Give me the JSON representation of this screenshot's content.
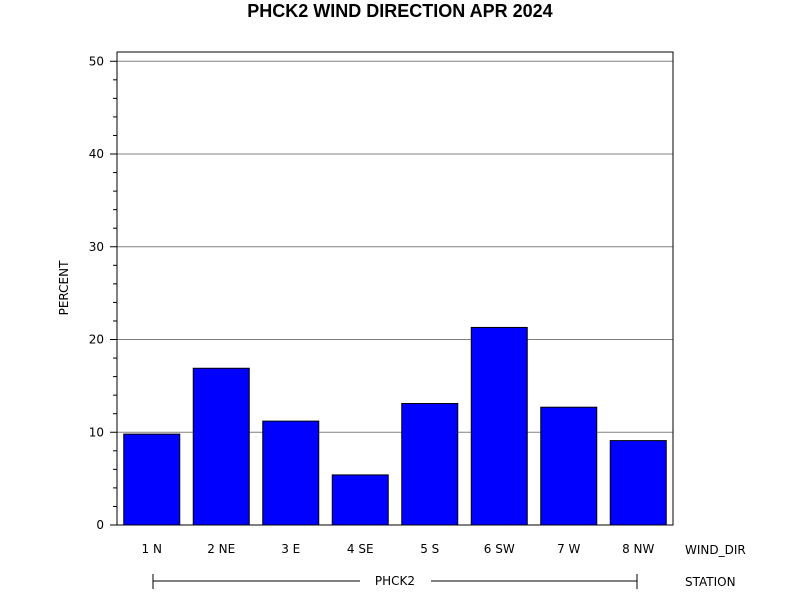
{
  "chart_data": {
    "type": "bar",
    "title": "PHCK2 WIND DIRECTION APR 2024",
    "ylabel": "PERCENT",
    "xlabel": "WIND_DIR",
    "group_label": "PHCK2",
    "group_axis_label": "STATION",
    "categories": [
      "1 N",
      "2 NE",
      "3 E",
      "4 SE",
      "5 S",
      "6 SW",
      "7 W",
      "8 NW"
    ],
    "values": [
      9.8,
      16.9,
      11.2,
      5.4,
      13.1,
      21.3,
      12.7,
      9.1
    ],
    "ylim": [
      0,
      51
    ],
    "yticks": [
      0,
      10,
      20,
      30,
      40,
      50
    ],
    "grid": true,
    "bar_color": "#0000ff",
    "grid_color": "#808080"
  }
}
